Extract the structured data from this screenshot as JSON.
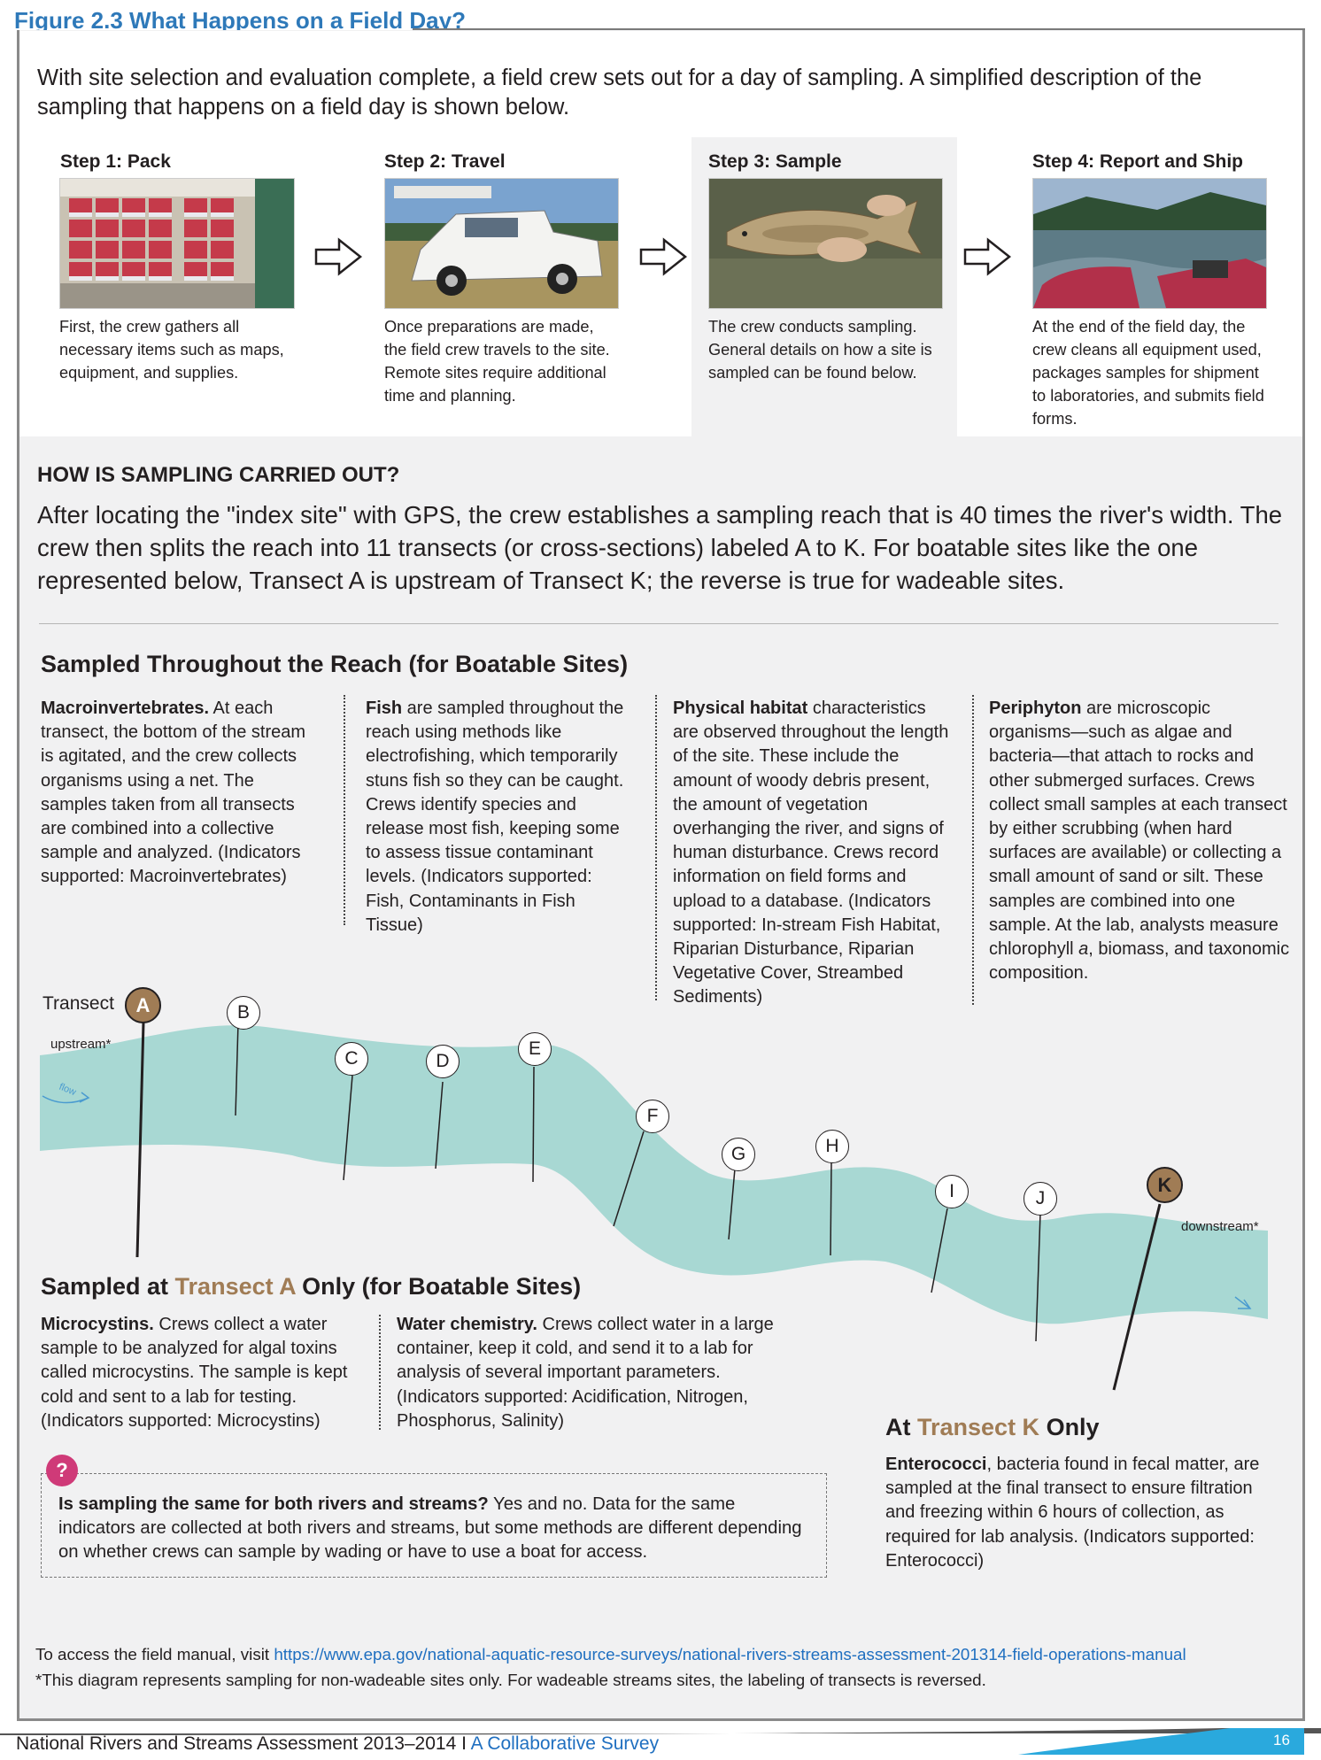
{
  "figure_title": "Figure 2.3 What Happens on a Field Day?",
  "intro": "With site selection and evaluation complete, a field crew sets out for a day of sampling. A simplified description of the sampling that happens on a field day is shown below.",
  "steps": [
    {
      "title": "Step 1: Pack",
      "text": "First, the crew gathers all necessary items such as maps, equipment, and supplies."
    },
    {
      "title": "Step 2: Travel",
      "text": "Once preparations are made, the field crew travels to the site. Remote sites require additional time and planning."
    },
    {
      "title": "Step 3: Sample",
      "text": "The crew conducts sampling. General details on how a site is sampled can be found below."
    },
    {
      "title": "Step 4: Report and Ship",
      "text": "At the end of the field day, the crew cleans all equipment used, packages samples for shipment to laboratories, and submits field forms."
    }
  ],
  "how": {
    "heading": "HOW IS SAMPLING CARRIED OUT?",
    "text": "After locating the \"index site\" with GPS, the crew establishes a sampling reach that is 40 times the river's width. The crew then splits the reach into 11 transects (or cross-sections) labeled A to K. For boatable sites like the one represented below, Transect A is upstream of Transect K; the reverse is true for wadeable sites."
  },
  "throughout": {
    "title": "Sampled Throughout the Reach (for Boatable Sites)",
    "cols": [
      {
        "bold": "Macroinvertebrates.",
        "text": " At each transect, the bottom of the stream is agitated, and the crew collects organisms using a net. The samples taken from all transects are combined into a collective sample and analyzed. (Indicators supported: Macroinvertebrates)"
      },
      {
        "bold": "Fish",
        "text": " are sampled throughout the reach using methods like electrofishing, which temporarily stuns fish so they can be caught. Crews identify species and release most fish, keeping some to assess tissue contaminant levels. (Indicators supported: Fish, Contaminants in Fish Tissue)"
      },
      {
        "bold": "Physical habitat",
        "text": " characteristics are observed throughout the length of the site. These include the amount of woody debris present, the amount of vegetation overhanging the river, and signs of human disturbance. Crews record information on field forms and upload to a database. (Indicators supported: In-stream Fish Habitat, Riparian Disturbance, Riparian Vegetative Cover, Streambed Sediments)"
      },
      {
        "bold": "Periphyton",
        "text_a": " are microscopic organisms—such as algae and bacteria—that attach to rocks and other submerged surfaces. Crews collect small samples at each transect by either scrubbing (when hard surfaces are available) or collecting a small amount of sand or silt. These samples are combined into one sample. At the lab, analysts measure chlorophyll ",
        "italic": "a",
        "text_b": ", biomass, and taxonomic composition."
      }
    ]
  },
  "diagram": {
    "transect_label": "Transect",
    "upstream": "upstream*",
    "downstream": "downstream*",
    "flow": "flow",
    "letters": [
      "A",
      "B",
      "C",
      "D",
      "E",
      "F",
      "G",
      "H",
      "I",
      "J",
      "K"
    ],
    "accent_color": "#a07c55",
    "river_color": "#a8d8d3"
  },
  "transect_a": {
    "title_pre": "Sampled at ",
    "title_accent": "Transect A",
    "title_post": " Only (for Boatable Sites)",
    "cols": [
      {
        "bold": "Microcystins.",
        "text": " Crews collect a water sample to be analyzed for algal toxins called microcystins. The sample is kept cold and sent to a lab for testing. (Indicators supported: Microcystins)"
      },
      {
        "bold": "Water chemistry.",
        "text": " Crews collect water in a large container, keep it cold, and send it to a lab for analysis of several important parameters. (Indicators supported: Acidification, Nitrogen, Phosphorus, Salinity)"
      }
    ]
  },
  "transect_k": {
    "title_pre": "At ",
    "title_accent": "Transect K",
    "title_post": " Only",
    "bold": "Enterococci",
    "text": ", bacteria found in fecal matter, are sampled at the final transect to ensure filtration and freezing within 6 hours of collection, as required for lab analysis. (Indicators supported: Enterococci)"
  },
  "question": {
    "icon": "?",
    "bold": "Is sampling the same for both rivers and streams?",
    "text": "  Yes and no. Data for the same indicators are collected at both rivers and streams, but some methods are different depending on whether crews can sample by wading or have to use a boat for access."
  },
  "footer": {
    "access_pre": "To access the field manual, visit ",
    "access_link": "https://www.epa.gov/national-aquatic-resource-surveys/national-rivers-streams-assessment-201314-field-operations-manual",
    "note": "*This diagram represents sampling for non-wadeable sites only. For wadeable streams sites, the labeling of transects is reversed.",
    "page": "16",
    "org": "National Rivers and Streams Assessment 2013–2014",
    "sep": "I",
    "org_sub": "A Collaborative Survey"
  }
}
